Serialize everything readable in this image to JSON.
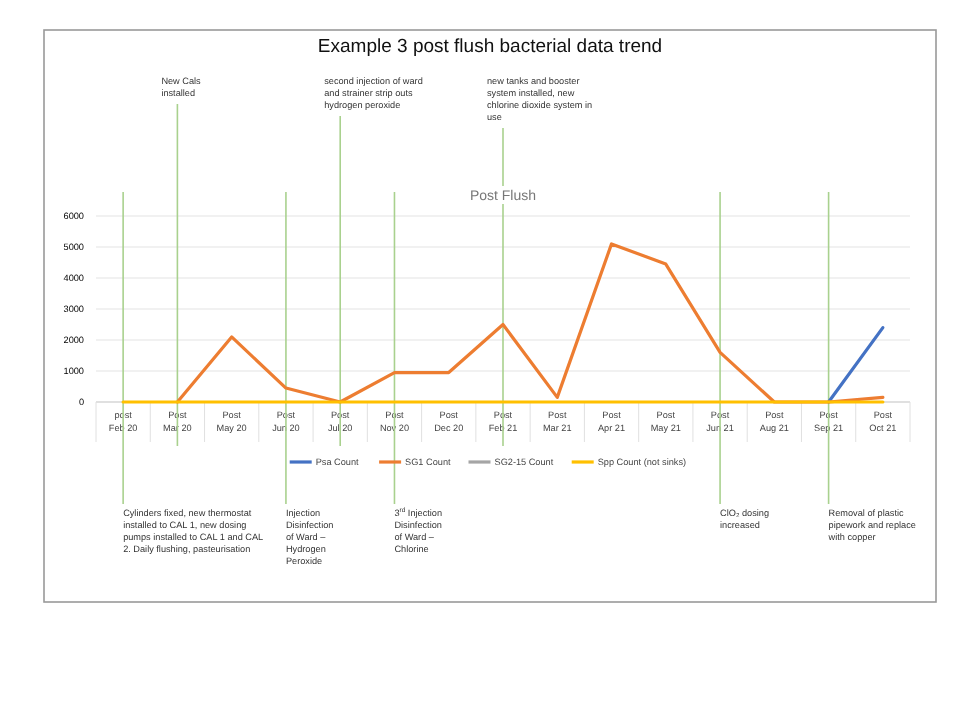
{
  "chart_data": {
    "type": "line",
    "title": "Example 3 post flush bacterial data trend",
    "subtitle": "Post Flush",
    "categories": [
      "post Feb 20",
      "Post Mar 20",
      "Post May 20",
      "Post Jun 20",
      "Post Jul 20",
      "Post Nov 20",
      "Post Dec 20",
      "Post Feb 21",
      "Post Mar 21",
      "Post Apr 21",
      "Post May 21",
      "Post Jun 21",
      "Post Aug 21",
      "Post Sep 21",
      "Post Oct 21"
    ],
    "series": [
      {
        "name": "Psa Count",
        "color": "#4472c4",
        "values": [
          null,
          null,
          null,
          null,
          null,
          null,
          null,
          null,
          null,
          null,
          null,
          null,
          null,
          0,
          2400
        ]
      },
      {
        "name": "SG1 Count",
        "color": "#ed7d31",
        "values": [
          null,
          0,
          2100,
          450,
          0,
          950,
          950,
          2500,
          150,
          5100,
          4450,
          1600,
          0,
          0,
          150
        ]
      },
      {
        "name": "SG2-15 Count",
        "color": "#a5a5a5",
        "values": [
          null,
          null,
          null,
          null,
          null,
          null,
          null,
          null,
          null,
          null,
          null,
          null,
          null,
          null,
          null
        ]
      },
      {
        "name": "Spp Count (not sinks)",
        "color": "#ffc000",
        "values": [
          0,
          0,
          0,
          0,
          0,
          0,
          0,
          0,
          0,
          0,
          0,
          0,
          0,
          0,
          0
        ]
      }
    ],
    "ylim": [
      0,
      6000
    ],
    "yticks": [
      0,
      1000,
      2000,
      3000,
      4000,
      5000,
      6000
    ],
    "grid": "y",
    "legend": "bottom",
    "marker": "none",
    "line_style": "solid",
    "ref_lines": [
      {
        "axis": "x",
        "value": "post Feb 20",
        "color": "#a9d18e",
        "label": "Cylinders fixed, new thermostat installed to CAL 1, new dosing pumps installed to CAL 1 and CAL 2. Daily flushing, pasteurisation"
      },
      {
        "axis": "x",
        "value": "Post Mar 20",
        "color": "#a9d18e",
        "label": "New Cals installed"
      },
      {
        "axis": "x",
        "value": "Post Jun 20",
        "color": "#a9d18e",
        "label": "Injection Disinfection of Ward – Hydrogen Peroxide"
      },
      {
        "axis": "x",
        "value": "Post Jul 20",
        "color": "#a9d18e",
        "label": "second injection of ward and strainer strip outs hydrogen peroxide"
      },
      {
        "axis": "x",
        "value": "Post Nov 20",
        "color": "#a9d18e",
        "label": "3$^{rd}$ Injection Disinfection of Ward – Chlorine"
      },
      {
        "axis": "x",
        "value": "Post Feb 21",
        "color": "#a9d18e",
        "label": "new tanks and booster system installed, new chlorine dioxide system in use"
      },
      {
        "axis": "x",
        "value": "Post Jun 21",
        "color": "#a9d18e",
        "label": "ClO₂ dosing increased"
      },
      {
        "axis": "x",
        "value": "Post Sep 21",
        "color": "#a9d18e",
        "label": "Removal of plastic pipework and replace with copper"
      }
    ]
  }
}
